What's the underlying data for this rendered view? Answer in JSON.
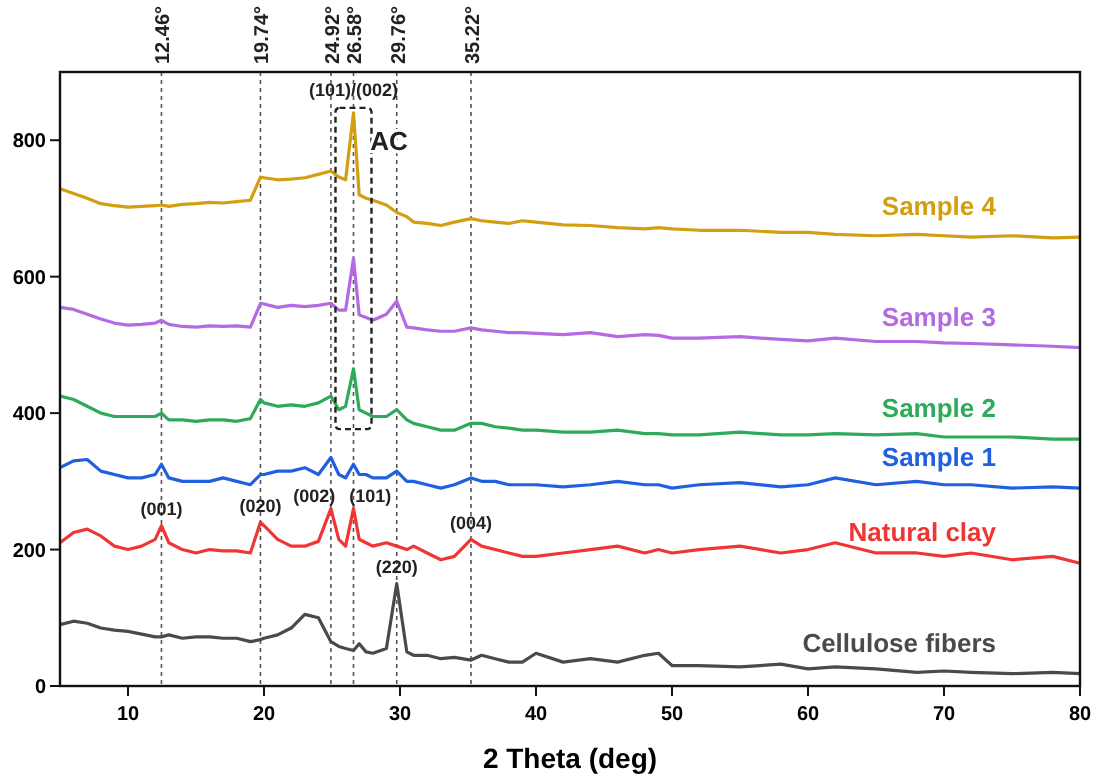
{
  "chart_data": {
    "type": "line",
    "xlabel": "2 Theta (deg)",
    "x": [
      5,
      6,
      7,
      8,
      9,
      10,
      11,
      12,
      12.46,
      13,
      14,
      15,
      16,
      17,
      18,
      19,
      19.74,
      20,
      21,
      22,
      23,
      24,
      24.92,
      25.5,
      26,
      26.58,
      27,
      27.5,
      28,
      29,
      29.76,
      30.5,
      31,
      32,
      33,
      34,
      35.22,
      36,
      37,
      38,
      39,
      40,
      42,
      44,
      46,
      48,
      49,
      50,
      52,
      55,
      58,
      60,
      62,
      65,
      68,
      70,
      72,
      75,
      78,
      80
    ],
    "series": [
      {
        "name": "Sample 4",
        "color": "#d39e0f",
        "values": [
          729,
          722,
          715,
          707,
          704,
          702,
          703,
          704,
          705,
          703,
          706,
          707,
          709,
          708,
          710,
          712,
          746,
          745,
          742,
          743,
          745,
          750,
          755,
          746,
          742,
          840,
          720,
          715,
          712,
          705,
          694,
          688,
          680,
          678,
          675,
          680,
          685,
          682,
          680,
          678,
          682,
          680,
          676,
          675,
          672,
          670,
          672,
          670,
          668,
          668,
          665,
          665,
          662,
          660,
          662,
          660,
          658,
          660,
          657,
          658
        ]
      },
      {
        "name": "Sample 3",
        "color": "#b36ae2",
        "values": [
          555,
          552,
          545,
          538,
          532,
          529,
          530,
          532,
          536,
          530,
          527,
          526,
          528,
          527,
          528,
          526,
          561,
          560,
          555,
          558,
          556,
          558,
          561,
          551,
          551,
          627,
          544,
          540,
          536,
          545,
          564,
          526,
          525,
          522,
          520,
          520,
          525,
          522,
          520,
          518,
          518,
          517,
          515,
          518,
          512,
          515,
          514,
          510,
          510,
          512,
          508,
          506,
          510,
          505,
          505,
          503,
          502,
          500,
          498,
          496
        ]
      },
      {
        "name": "Sample 2",
        "color": "#2eaa5a",
        "values": [
          425,
          420,
          410,
          400,
          395,
          395,
          395,
          395,
          400,
          390,
          390,
          388,
          390,
          390,
          388,
          392,
          420,
          415,
          410,
          412,
          410,
          415,
          425,
          405,
          410,
          465,
          405,
          400,
          395,
          395,
          405,
          390,
          385,
          380,
          375,
          375,
          385,
          385,
          380,
          378,
          375,
          375,
          372,
          372,
          375,
          370,
          370,
          368,
          368,
          372,
          368,
          368,
          370,
          368,
          370,
          365,
          365,
          365,
          362,
          362
        ]
      },
      {
        "name": "Sample 1",
        "color": "#2060e0",
        "values": [
          320,
          330,
          332,
          315,
          310,
          305,
          305,
          310,
          325,
          305,
          300,
          300,
          300,
          305,
          300,
          295,
          310,
          310,
          315,
          315,
          320,
          310,
          335,
          310,
          305,
          325,
          310,
          310,
          305,
          305,
          315,
          300,
          300,
          295,
          290,
          295,
          305,
          300,
          300,
          295,
          295,
          295,
          292,
          295,
          300,
          295,
          295,
          290,
          295,
          298,
          292,
          295,
          305,
          295,
          300,
          295,
          295,
          290,
          292,
          290
        ]
      },
      {
        "name": "Natural clay",
        "color": "#f03535",
        "values": [
          210,
          225,
          230,
          220,
          205,
          200,
          205,
          215,
          235,
          210,
          200,
          195,
          200,
          198,
          198,
          195,
          240,
          235,
          215,
          205,
          205,
          212,
          260,
          215,
          205,
          260,
          215,
          210,
          205,
          210,
          205,
          200,
          205,
          195,
          185,
          190,
          215,
          205,
          200,
          195,
          190,
          190,
          195,
          200,
          205,
          195,
          200,
          195,
          200,
          205,
          195,
          200,
          210,
          195,
          195,
          190,
          195,
          185,
          190,
          180
        ]
      },
      {
        "name": "Cellulose fibers",
        "color": "#4a4a4a",
        "values": [
          90,
          95,
          92,
          85,
          82,
          80,
          76,
          72,
          72,
          75,
          70,
          72,
          72,
          70,
          70,
          65,
          68,
          70,
          75,
          85,
          105,
          100,
          65,
          58,
          55,
          52,
          62,
          50,
          48,
          55,
          150,
          50,
          45,
          45,
          40,
          42,
          38,
          45,
          40,
          35,
          35,
          48,
          35,
          40,
          35,
          45,
          48,
          30,
          30,
          28,
          32,
          25,
          28,
          25,
          20,
          22,
          20,
          18,
          20,
          18
        ]
      }
    ],
    "xlim": [
      5,
      80
    ],
    "xticks": [
      10,
      20,
      30,
      40,
      50,
      60,
      70,
      80
    ],
    "ylim": [
      0,
      900
    ],
    "yticks": [
      0,
      200,
      400,
      600,
      800
    ],
    "ref_lines": [
      {
        "axis": "x",
        "value": 12.46,
        "label": "12.46°",
        "line_style": "dotted"
      },
      {
        "axis": "x",
        "value": 19.74,
        "label": "19.74°",
        "line_style": "dotted"
      },
      {
        "axis": "x",
        "value": 24.92,
        "label": "24.92°",
        "line_style": "dotted"
      },
      {
        "axis": "x",
        "value": 26.58,
        "label": "26.58°",
        "line_style": "dotted"
      },
      {
        "axis": "x",
        "value": 29.76,
        "label": "29.76°",
        "line_style": "dotted"
      },
      {
        "axis": "x",
        "value": 35.22,
        "label": "35.22°",
        "line_style": "dotted"
      }
    ],
    "annotations": [
      {
        "text": "(001)",
        "x": 12.46,
        "y": 250
      },
      {
        "text": "(020)",
        "x": 19.74,
        "y": 255
      },
      {
        "text": "(002)",
        "x": 24.92,
        "y": 270
      },
      {
        "text": "(101)",
        "x": 26.58,
        "y": 270
      },
      {
        "text": "(004)",
        "x": 35.22,
        "y": 230
      },
      {
        "text": "(220)",
        "x": 29.76,
        "y": 165
      },
      {
        "text": "(101)/(002)",
        "x": 26.58,
        "y": 865
      },
      {
        "text": "AC",
        "x": 29.2,
        "y": 785
      }
    ],
    "legend": false,
    "grid": false,
    "marker": "none",
    "line_style": "solid"
  }
}
